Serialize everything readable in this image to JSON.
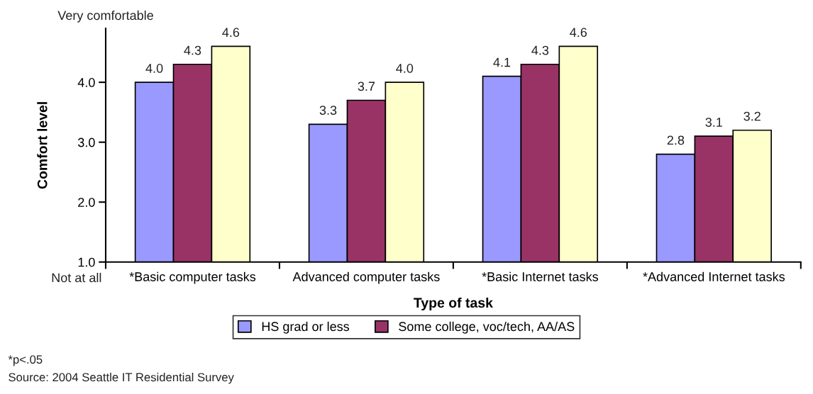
{
  "chart_data": {
    "type": "bar",
    "categories": [
      "*Basic computer tasks",
      "Advanced computer tasks",
      "*Basic Internet tasks",
      "*Advanced Internet tasks"
    ],
    "series": [
      {
        "name": "HS grad or less",
        "color": "#9999ff",
        "values": [
          4.0,
          3.3,
          4.1,
          2.8
        ],
        "value_labels": [
          "4.0",
          "3.3",
          "4.1",
          "2.8"
        ]
      },
      {
        "name": "Some college, voc/tech, AA/AS",
        "color": "#993366",
        "values": [
          4.3,
          3.7,
          4.3,
          3.1
        ],
        "value_labels": [
          "4.3",
          "3.7",
          "4.3",
          "3.1"
        ]
      },
      {
        "color": "#ffffcc",
        "values": [
          4.6,
          4.0,
          4.6,
          3.2
        ],
        "value_labels": [
          "4.6",
          "4.0",
          "4.6",
          "3.2"
        ]
      }
    ],
    "xlabel": "Type of task",
    "ylabel": "Comfort level",
    "ylim": [
      1,
      4.9
    ],
    "yticks": [
      {
        "value": 1,
        "label": "1.0"
      },
      {
        "value": 2,
        "label": "2.0"
      },
      {
        "value": 3,
        "label": "3.0"
      },
      {
        "value": 4,
        "label": "4.0"
      }
    ],
    "annotations": [
      "Very comfortable",
      "Not at all",
      "*p<.05",
      "Source: 2004 Seattle IT Residential Survey"
    ],
    "legend": "bottom"
  }
}
